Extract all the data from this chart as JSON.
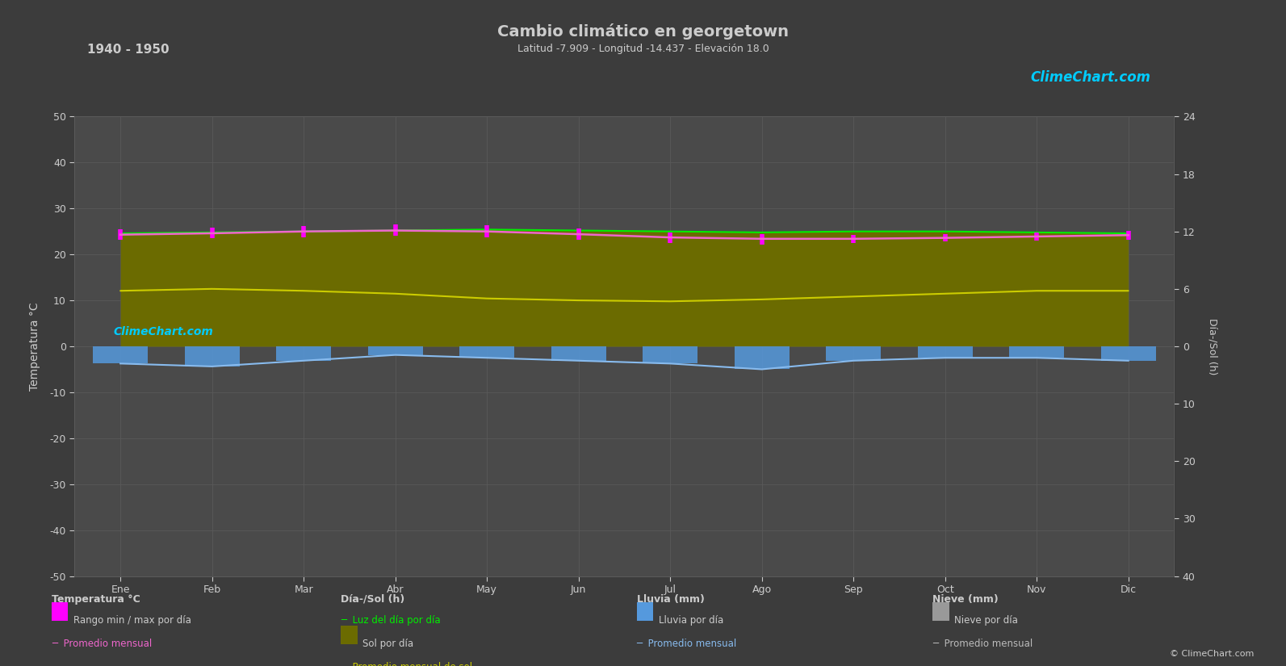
{
  "title": "Cambio climático en georgetown",
  "subtitle": "Latitud -7.909 - Longitud -14.437 - Elevación 18.0",
  "year_range": "1940 - 1950",
  "months": [
    "Ene",
    "Feb",
    "Mar",
    "Abr",
    "May",
    "Jun",
    "Jul",
    "Ago",
    "Sep",
    "Oct",
    "Nov",
    "Dic"
  ],
  "temp_ylim": [
    -50,
    50
  ],
  "bg_color": "#3c3c3c",
  "plot_bg_color": "#4a4a4a",
  "grid_color": "#5a5a5a",
  "text_color": "#cccccc",
  "temp_max": [
    25.5,
    25.8,
    26.2,
    26.5,
    26.3,
    25.6,
    24.8,
    24.5,
    24.3,
    24.5,
    24.8,
    25.2
  ],
  "temp_min": [
    23.2,
    23.5,
    23.8,
    24.0,
    23.8,
    23.2,
    22.5,
    22.2,
    22.5,
    22.8,
    23.0,
    23.2
  ],
  "temp_avg": [
    24.3,
    24.6,
    25.0,
    25.2,
    25.0,
    24.4,
    23.7,
    23.4,
    23.4,
    23.6,
    23.9,
    24.2
  ],
  "sunlight_day": [
    11.8,
    11.9,
    12.0,
    12.1,
    12.2,
    12.1,
    12.0,
    11.9,
    12.0,
    12.0,
    11.9,
    11.8
  ],
  "sun_hours_day": [
    5.8,
    6.0,
    5.8,
    5.5,
    5.0,
    4.8,
    4.7,
    4.9,
    5.2,
    5.5,
    5.8,
    5.8
  ],
  "rain_mm": [
    3.0,
    3.5,
    2.5,
    1.5,
    2.0,
    2.5,
    3.0,
    4.0,
    2.5,
    2.0,
    2.0,
    2.5
  ],
  "rain_avg": [
    3.0,
    3.5,
    2.5,
    1.5,
    2.0,
    2.5,
    3.0,
    4.0,
    2.5,
    2.0,
    2.0,
    2.5
  ],
  "temp_fill_color": "#808020",
  "sun_line_color": "#00ee00",
  "sun_avg_color": "#cccc00",
  "sun_fill_color": "#6b6b00",
  "rain_bar_color": "#5599dd",
  "rain_avg_color": "#88bbee",
  "snow_bar_color": "#999999",
  "snow_avg_color": "#bbbbbb",
  "temp_range_color": "#ff00ff",
  "temp_avg_color": "#ee66cc"
}
